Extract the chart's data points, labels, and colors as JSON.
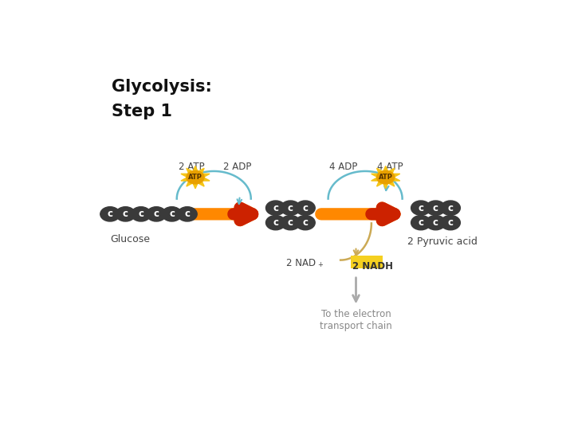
{
  "title1": "Glycolysis:",
  "title2": "Step 1",
  "bg_color": "#ffffff",
  "molecule_color": "#3a3a3a",
  "text_color_dark": "#444444",
  "text_color_gray": "#888888",
  "arrow_orange": "#ff8800",
  "arrow_red": "#cc2200",
  "arrow_blue": "#66bbcc",
  "arrow_gold": "#ccaa55",
  "arrow_gray": "#aaaaaa",
  "nadh_box_color": "#f5d020",
  "starburst_color": "#f5c518",
  "starburst_inner": "#e8a000",
  "glucose_label": "Glucose",
  "pyruvic_label": "2 Pyruvic acid",
  "atp2_label": "2 ATP",
  "adp2_label": "2 ADP",
  "adp4_label": "4 ADP",
  "atp4_label": "4 ATP",
  "nad_label": "2 NAD",
  "nadh_label": "2 NADH",
  "electron_label": "To the electron\ntransport chain",
  "fig_w": 7.2,
  "fig_h": 5.4,
  "dpi": 100
}
